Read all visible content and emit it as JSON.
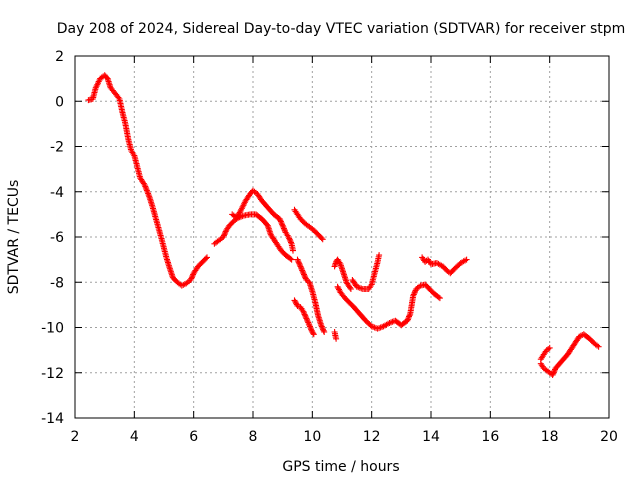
{
  "chart_data": {
    "type": "scatter",
    "title": "Day 208 of 2024, Sidereal Day-to-day VTEC variation (SDTVAR) for receiver stpm",
    "xlabel": "GPS time / hours",
    "ylabel": "SDTVAR / TECUs",
    "xlim": [
      2,
      20
    ],
    "ylim": [
      -14,
      2
    ],
    "xticks": [
      2,
      4,
      6,
      8,
      10,
      12,
      14,
      16,
      18,
      20
    ],
    "yticks": [
      2,
      0,
      -2,
      -4,
      -6,
      -8,
      -10,
      -12,
      -14
    ],
    "grid": true,
    "marker": "+",
    "series": [
      {
        "name": "SDTVAR",
        "color": "#ff0000",
        "segments": [
          [
            [
              2.45,
              0.05
            ],
            [
              2.6,
              0.1
            ],
            [
              2.7,
              0.6
            ],
            [
              2.85,
              1.0
            ],
            [
              3.0,
              1.15
            ],
            [
              3.1,
              1.0
            ],
            [
              3.2,
              0.6
            ],
            [
              3.35,
              0.35
            ],
            [
              3.5,
              0.1
            ],
            [
              3.6,
              -0.5
            ],
            [
              3.7,
              -1.0
            ],
            [
              3.8,
              -1.7
            ],
            [
              3.9,
              -2.2
            ],
            [
              4.0,
              -2.4
            ],
            [
              4.1,
              -2.9
            ],
            [
              4.2,
              -3.4
            ],
            [
              4.35,
              -3.7
            ],
            [
              4.5,
              -4.2
            ],
            [
              4.6,
              -4.6
            ],
            [
              4.75,
              -5.3
            ],
            [
              4.9,
              -6.0
            ],
            [
              5.0,
              -6.5
            ],
            [
              5.1,
              -7.0
            ],
            [
              5.2,
              -7.4
            ],
            [
              5.3,
              -7.8
            ],
            [
              5.45,
              -8.0
            ],
            [
              5.6,
              -8.15
            ],
            [
              5.75,
              -8.05
            ],
            [
              5.9,
              -7.9
            ],
            [
              6.0,
              -7.6
            ],
            [
              6.15,
              -7.3
            ],
            [
              6.3,
              -7.1
            ],
            [
              6.45,
              -6.9
            ]
          ],
          [
            [
              6.7,
              -6.3
            ],
            [
              6.8,
              -6.2
            ],
            [
              6.9,
              -6.1
            ],
            [
              7.0,
              -6.0
            ],
            [
              7.1,
              -5.7
            ],
            [
              7.2,
              -5.5
            ],
            [
              7.35,
              -5.3
            ],
            [
              7.5,
              -5.15
            ],
            [
              7.7,
              -5.05
            ],
            [
              7.9,
              -5.0
            ],
            [
              8.1,
              -5.0
            ],
            [
              8.3,
              -5.2
            ],
            [
              8.5,
              -5.5
            ],
            [
              8.6,
              -5.9
            ],
            [
              8.8,
              -6.3
            ],
            [
              8.95,
              -6.6
            ],
            [
              9.1,
              -6.8
            ],
            [
              9.3,
              -7.0
            ]
          ],
          [
            [
              7.3,
              -5.0
            ],
            [
              7.45,
              -5.15
            ],
            [
              7.6,
              -4.8
            ],
            [
              7.75,
              -4.4
            ],
            [
              7.9,
              -4.1
            ],
            [
              8.0,
              -3.95
            ],
            [
              8.15,
              -4.1
            ],
            [
              8.3,
              -4.4
            ],
            [
              8.5,
              -4.7
            ],
            [
              8.7,
              -5.0
            ],
            [
              8.9,
              -5.2
            ],
            [
              9.0,
              -5.5
            ],
            [
              9.1,
              -5.8
            ],
            [
              9.2,
              -6.0
            ],
            [
              9.3,
              -6.3
            ],
            [
              9.35,
              -6.6
            ]
          ],
          [
            [
              9.4,
              -4.8
            ],
            [
              9.5,
              -5.0
            ],
            [
              9.6,
              -5.2
            ],
            [
              9.75,
              -5.4
            ],
            [
              9.9,
              -5.55
            ],
            [
              10.05,
              -5.7
            ],
            [
              10.2,
              -5.9
            ],
            [
              10.35,
              -6.1
            ]
          ],
          [
            [
              9.5,
              -7.0
            ],
            [
              9.6,
              -7.3
            ],
            [
              9.7,
              -7.6
            ],
            [
              9.8,
              -7.9
            ],
            [
              9.9,
              -8.0
            ],
            [
              10.0,
              -8.4
            ],
            [
              10.1,
              -8.9
            ],
            [
              10.2,
              -9.5
            ],
            [
              10.3,
              -9.9
            ],
            [
              10.4,
              -10.2
            ]
          ],
          [
            [
              9.4,
              -8.8
            ],
            [
              9.5,
              -9.05
            ],
            [
              9.6,
              -9.1
            ],
            [
              9.7,
              -9.3
            ],
            [
              9.8,
              -9.6
            ],
            [
              9.9,
              -9.9
            ],
            [
              10.0,
              -10.2
            ],
            [
              10.05,
              -10.3
            ]
          ],
          [
            [
              10.75,
              -10.2
            ],
            [
              10.8,
              -10.5
            ]
          ],
          [
            [
              10.75,
              -7.3
            ],
            [
              10.8,
              -7.1
            ],
            [
              10.85,
              -7.0
            ],
            [
              10.95,
              -7.2
            ],
            [
              11.05,
              -7.6
            ],
            [
              11.15,
              -8.0
            ],
            [
              11.3,
              -8.3
            ]
          ],
          [
            [
              10.85,
              -8.2
            ],
            [
              10.95,
              -8.45
            ],
            [
              11.1,
              -8.7
            ],
            [
              11.25,
              -8.9
            ],
            [
              11.4,
              -9.1
            ],
            [
              11.6,
              -9.4
            ],
            [
              11.8,
              -9.7
            ],
            [
              12.0,
              -9.95
            ],
            [
              12.2,
              -10.05
            ],
            [
              12.4,
              -9.95
            ],
            [
              12.6,
              -9.8
            ],
            [
              12.8,
              -9.7
            ],
            [
              13.0,
              -9.9
            ],
            [
              13.2,
              -9.7
            ],
            [
              13.3,
              -9.4
            ],
            [
              13.4,
              -8.6
            ],
            [
              13.5,
              -8.3
            ],
            [
              13.65,
              -8.15
            ],
            [
              13.8,
              -8.1
            ],
            [
              13.95,
              -8.3
            ],
            [
              14.1,
              -8.5
            ],
            [
              14.3,
              -8.7
            ]
          ],
          [
            [
              11.35,
              -7.9
            ],
            [
              11.5,
              -8.2
            ],
            [
              11.7,
              -8.3
            ],
            [
              11.9,
              -8.3
            ],
            [
              12.0,
              -8.1
            ],
            [
              12.1,
              -7.6
            ],
            [
              12.2,
              -7.1
            ],
            [
              12.25,
              -6.8
            ]
          ],
          [
            [
              13.7,
              -6.9
            ],
            [
              13.8,
              -7.1
            ],
            [
              13.9,
              -7.0
            ],
            [
              14.0,
              -7.2
            ],
            [
              14.2,
              -7.15
            ],
            [
              14.4,
              -7.3
            ],
            [
              14.55,
              -7.5
            ],
            [
              14.65,
              -7.6
            ],
            [
              14.8,
              -7.4
            ],
            [
              15.0,
              -7.15
            ],
            [
              15.2,
              -7.0
            ]
          ],
          [
            [
              17.7,
              -11.4
            ],
            [
              17.8,
              -11.2
            ],
            [
              17.9,
              -11.0
            ],
            [
              18.0,
              -10.9
            ]
          ],
          [
            [
              17.7,
              -11.6
            ],
            [
              17.8,
              -11.8
            ],
            [
              17.9,
              -11.9
            ],
            [
              18.0,
              -12.0
            ],
            [
              18.1,
              -12.1
            ],
            [
              18.2,
              -11.8
            ],
            [
              18.4,
              -11.5
            ],
            [
              18.6,
              -11.2
            ],
            [
              18.8,
              -10.8
            ],
            [
              19.0,
              -10.4
            ],
            [
              19.15,
              -10.3
            ],
            [
              19.35,
              -10.5
            ],
            [
              19.5,
              -10.7
            ],
            [
              19.65,
              -10.85
            ]
          ]
        ]
      }
    ]
  }
}
